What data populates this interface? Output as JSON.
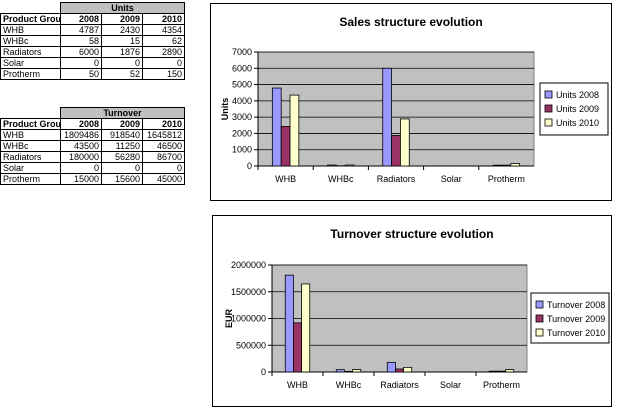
{
  "units_table": {
    "title": "Units",
    "header": [
      "Product Group",
      "2008",
      "2009",
      "2010"
    ],
    "rows": [
      [
        "WHB",
        "4787",
        "2430",
        "4354"
      ],
      [
        "WHBc",
        "58",
        "15",
        "62"
      ],
      [
        "Radiators",
        "6000",
        "1876",
        "2890"
      ],
      [
        "Solar",
        "0",
        "0",
        "0"
      ],
      [
        "Protherm",
        "50",
        "52",
        "150"
      ]
    ]
  },
  "turnover_table": {
    "title": "Turnover",
    "header": [
      "Product Group",
      "2008",
      "2009",
      "2010"
    ],
    "rows": [
      [
        "WHB",
        "1809486",
        "918540",
        "1645812"
      ],
      [
        "WHBc",
        "43500",
        "11250",
        "46500"
      ],
      [
        "Radiators",
        "180000",
        "56280",
        "86700"
      ],
      [
        "Solar",
        "0",
        "0",
        "0"
      ],
      [
        "Protherm",
        "15000",
        "15600",
        "45000"
      ]
    ]
  },
  "chart_data": [
    {
      "type": "bar",
      "title": "Sales structure evolution",
      "xlabel": "",
      "ylabel": "Units",
      "categories": [
        "WHB",
        "WHBc",
        "Radiators",
        "Solar",
        "Protherm"
      ],
      "series": [
        {
          "name": "Units 2008",
          "values": [
            4787,
            58,
            6000,
            0,
            50
          ],
          "color": "#9999ff"
        },
        {
          "name": "Units 2009",
          "values": [
            2430,
            15,
            1876,
            0,
            52
          ],
          "color": "#993366"
        },
        {
          "name": "Units 2010",
          "values": [
            4354,
            62,
            2890,
            0,
            150
          ],
          "color": "#ffffcc"
        }
      ],
      "ylim": [
        0,
        7000
      ],
      "yticks": [
        0,
        1000,
        2000,
        3000,
        4000,
        5000,
        6000,
        7000
      ],
      "ytick_labels": [
        "0",
        "1000",
        "2000",
        "3000",
        "4000",
        "5000",
        "6000",
        "7000"
      ],
      "grid": true,
      "plot_background": "#c0c0c0",
      "legend_position": "right"
    },
    {
      "type": "bar",
      "title": "Turnover structure evolution",
      "xlabel": "",
      "ylabel": "EUR",
      "categories": [
        "WHB",
        "WHBc",
        "Radiators",
        "Solar",
        "Protherm"
      ],
      "series": [
        {
          "name": "Turnover 2008",
          "values": [
            1809486,
            43500,
            180000,
            0,
            15000
          ],
          "color": "#9999ff"
        },
        {
          "name": "Turnover 2009",
          "values": [
            918540,
            11250,
            56280,
            0,
            15600
          ],
          "color": "#993366"
        },
        {
          "name": "Turnover 2010",
          "values": [
            1645812,
            46500,
            86700,
            0,
            45000
          ],
          "color": "#ffffcc"
        }
      ],
      "ylim": [
        0,
        2000000
      ],
      "yticks": [
        0,
        500000,
        1000000,
        1500000,
        2000000
      ],
      "ytick_labels": [
        "0",
        "500000",
        "1000000",
        "1500000",
        "2000000"
      ],
      "grid": true,
      "plot_background": "#c0c0c0",
      "legend_position": "right"
    }
  ]
}
